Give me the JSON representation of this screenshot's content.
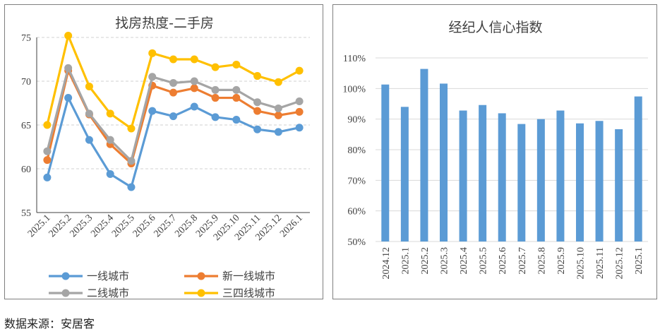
{
  "chart_data": [
    {
      "type": "line",
      "title": "找房热度-二手房",
      "categories": [
        "2025.1",
        "2025.2",
        "2025.3",
        "2025.4",
        "2025.5",
        "2025.6",
        "2025.7",
        "2025.8",
        "2025.9",
        "2025.10",
        "2025.11",
        "2025.12",
        "2026.1"
      ],
      "ylim": [
        55,
        75
      ],
      "yticks": [
        55,
        60,
        65,
        70,
        75
      ],
      "grid": true,
      "legend": "bottom",
      "series": [
        {
          "name": "一线城市",
          "color": "#5b9bd5",
          "values": [
            59.0,
            68.1,
            63.3,
            59.4,
            57.9,
            66.6,
            66.0,
            67.1,
            65.9,
            65.6,
            64.5,
            64.2,
            64.7
          ]
        },
        {
          "name": "新一线城市",
          "color": "#ed7d31",
          "values": [
            61.0,
            71.2,
            66.2,
            62.8,
            60.6,
            69.5,
            68.7,
            69.2,
            68.1,
            68.1,
            66.6,
            66.1,
            66.5
          ]
        },
        {
          "name": "二线城市",
          "color": "#a5a5a5",
          "values": [
            62.0,
            71.5,
            66.3,
            63.3,
            60.9,
            70.5,
            69.8,
            70.0,
            69.0,
            69.0,
            67.6,
            66.9,
            67.7
          ]
        },
        {
          "name": "三四线城市",
          "color": "#ffc000",
          "values": [
            65.0,
            75.2,
            69.4,
            66.3,
            64.6,
            73.2,
            72.5,
            72.5,
            71.6,
            71.9,
            70.6,
            69.9,
            71.2
          ]
        }
      ]
    },
    {
      "type": "bar",
      "title": "经纪人信心指数",
      "color": "#5b9bd5",
      "categories": [
        "2024.12",
        "2025.1",
        "2025.2",
        "2025.3",
        "2025.4",
        "2025.5",
        "2025.6",
        "2025.7",
        "2025.8",
        "2025.9",
        "2025.10",
        "2025.11",
        "2025.12",
        "2025.1"
      ],
      "values": [
        101.3,
        94.0,
        106.4,
        101.6,
        92.8,
        94.6,
        91.9,
        88.4,
        90.0,
        92.8,
        88.6,
        89.4,
        86.7,
        97.4
      ],
      "ylim": [
        50,
        110
      ],
      "yticks": [
        "50%",
        "60%",
        "70%",
        "80%",
        "90%",
        "100%",
        "110%"
      ],
      "grid": true
    }
  ],
  "source_text": "数据来源：安居客"
}
